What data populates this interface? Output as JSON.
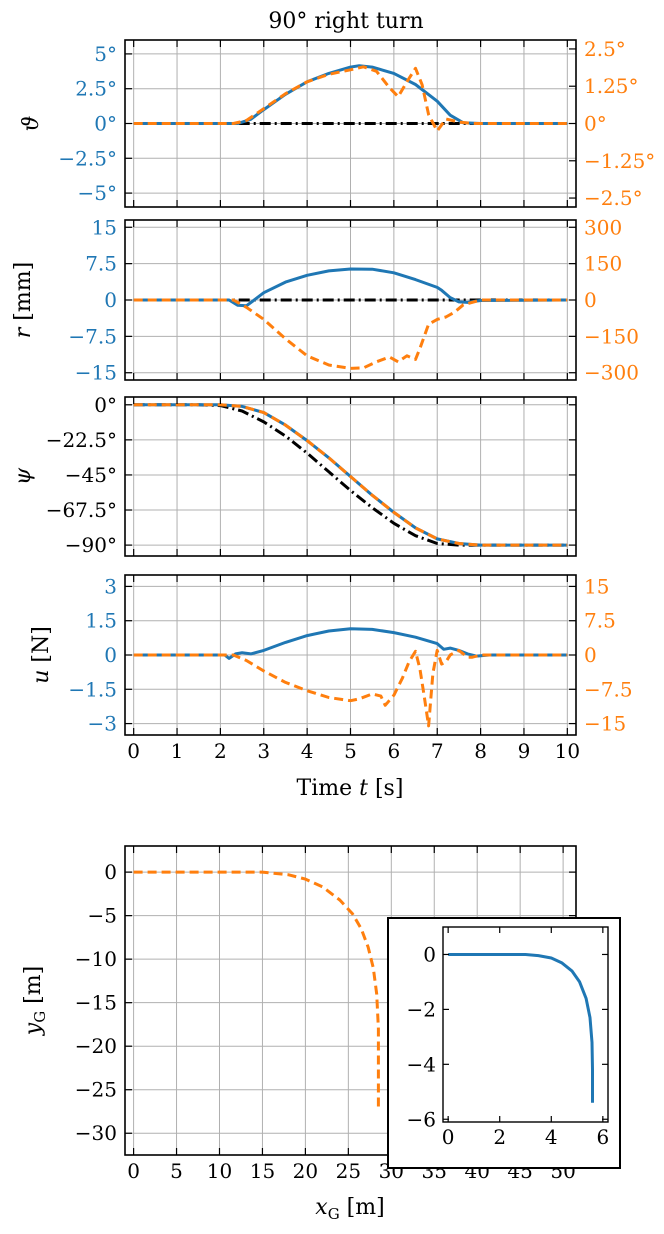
{
  "figure_title": "90° right turn",
  "colors": {
    "blue": "#1f77b4",
    "orange": "#ff7f0e",
    "black": "#000000",
    "grid": "#b0b0b0"
  },
  "chart_data": [
    {
      "type": "line",
      "id": "theta",
      "ylabel": "ϑ",
      "xlim": [
        -0.2,
        10.2
      ],
      "ylim": [
        -6,
        6
      ],
      "y2lim": [
        -2.8,
        2.8
      ],
      "xticks": [
        0,
        1,
        2,
        3,
        4,
        5,
        6,
        7,
        8,
        9,
        10
      ],
      "yticks": [
        {
          "v": 5,
          "label": "5°"
        },
        {
          "v": 2.5,
          "label": "2.5°"
        },
        {
          "v": 0,
          "label": "0°"
        },
        {
          "v": -2.5,
          "label": "−2.5°"
        },
        {
          "v": -5,
          "label": "−5°"
        }
      ],
      "y2ticks": [
        {
          "v": 2.5,
          "label": "2.5°"
        },
        {
          "v": 1.25,
          "label": "1.25°"
        },
        {
          "v": 0,
          "label": "0°"
        },
        {
          "v": -1.25,
          "label": "−1.25°"
        },
        {
          "v": -2.5,
          "label": "−2.5°"
        }
      ],
      "series": [
        {
          "axis": "left",
          "color": "black",
          "style": "dashdot",
          "x": [
            0,
            10
          ],
          "y": [
            0,
            0
          ]
        },
        {
          "axis": "left",
          "color": "blue",
          "style": "solid",
          "x": [
            0,
            2.4,
            2.7,
            3,
            3.5,
            4,
            4.5,
            5,
            5.2,
            5.5,
            6,
            6.5,
            7,
            7.3,
            7.6,
            8,
            10
          ],
          "y": [
            0,
            0,
            0.3,
            1.0,
            2.1,
            3.0,
            3.6,
            4.05,
            4.15,
            4.05,
            3.6,
            2.8,
            1.6,
            0.6,
            0.05,
            0,
            0
          ]
        },
        {
          "axis": "right",
          "color": "orange",
          "style": "dashed",
          "x": [
            0,
            2.3,
            2.6,
            3,
            3.5,
            4,
            4.5,
            5,
            5.3,
            5.6,
            5.9,
            6.1,
            6.3,
            6.5,
            6.65,
            6.8,
            7,
            7.2,
            7.5,
            7.8,
            10
          ],
          "y": [
            0,
            0,
            0.1,
            0.5,
            1.0,
            1.4,
            1.65,
            1.8,
            1.9,
            1.75,
            1.2,
            0.9,
            1.4,
            1.85,
            1.3,
            0.3,
            -0.25,
            0.15,
            0.05,
            0,
            0
          ]
        }
      ]
    },
    {
      "type": "line",
      "id": "r",
      "ylabel": "r [mm]",
      "xlim": [
        -0.2,
        10.2
      ],
      "ylim": [
        -16.5,
        16.5
      ],
      "y2lim": [
        -330,
        330
      ],
      "xticks": [
        0,
        1,
        2,
        3,
        4,
        5,
        6,
        7,
        8,
        9,
        10
      ],
      "yticks": [
        {
          "v": 15,
          "label": "15"
        },
        {
          "v": 7.5,
          "label": "7.5"
        },
        {
          "v": 0,
          "label": "0"
        },
        {
          "v": -7.5,
          "label": "−7.5"
        },
        {
          "v": -15,
          "label": "−15"
        }
      ],
      "y2ticks": [
        {
          "v": 300,
          "label": "300"
        },
        {
          "v": 150,
          "label": "150"
        },
        {
          "v": 0,
          "label": "0"
        },
        {
          "v": -150,
          "label": "−150"
        },
        {
          "v": -300,
          "label": "−300"
        }
      ],
      "series": [
        {
          "axis": "left",
          "color": "black",
          "style": "dashdot",
          "x": [
            0,
            10
          ],
          "y": [
            0,
            0
          ]
        },
        {
          "axis": "left",
          "color": "blue",
          "style": "solid",
          "x": [
            0,
            2.2,
            2.4,
            2.6,
            2.75,
            3,
            3.5,
            4,
            4.5,
            5,
            5.5,
            6,
            6.5,
            7,
            7.1,
            7.3,
            7.5,
            7.7,
            8,
            10
          ],
          "y": [
            0,
            0,
            -1.1,
            -1.2,
            -0.2,
            1.5,
            3.7,
            5.1,
            6.0,
            6.4,
            6.35,
            5.6,
            4.2,
            2.6,
            2.0,
            0.5,
            -0.4,
            -0.5,
            -0.1,
            0
          ]
        },
        {
          "axis": "right",
          "color": "orange",
          "style": "dashed",
          "x": [
            0,
            2.3,
            2.6,
            3,
            3.5,
            4,
            4.5,
            5,
            5.3,
            5.6,
            5.9,
            6.1,
            6.3,
            6.5,
            6.6,
            6.8,
            7,
            7.2,
            7.4,
            7.6,
            8,
            10
          ],
          "y": [
            0,
            0,
            -30,
            -80,
            -160,
            -230,
            -268,
            -282,
            -280,
            -255,
            -235,
            -255,
            -230,
            -245,
            -200,
            -100,
            -80,
            -70,
            -50,
            -20,
            0,
            0
          ]
        }
      ]
    },
    {
      "type": "line",
      "id": "psi",
      "ylabel": "ψ",
      "xlim": [
        -0.2,
        10.2
      ],
      "ylim": [
        -97,
        5
      ],
      "xticks": [
        0,
        1,
        2,
        3,
        4,
        5,
        6,
        7,
        8,
        9,
        10
      ],
      "yticks": [
        {
          "v": 0,
          "label": "0°"
        },
        {
          "v": -22.5,
          "label": "−22.5°"
        },
        {
          "v": -45,
          "label": "−45°"
        },
        {
          "v": -67.5,
          "label": "−67.5°"
        },
        {
          "v": -90,
          "label": "−90°"
        }
      ],
      "series": [
        {
          "axis": "left",
          "color": "black",
          "style": "dashdot",
          "x": [
            0,
            1.5,
            2,
            2.5,
            3,
            3.5,
            4,
            4.5,
            5,
            5.5,
            6,
            6.5,
            7,
            7.5,
            8,
            10
          ],
          "y": [
            0,
            0,
            -0.5,
            -4,
            -11,
            -20,
            -31,
            -43,
            -55,
            -66,
            -76,
            -84,
            -89,
            -90,
            -90,
            -90
          ]
        },
        {
          "axis": "left",
          "color": "blue",
          "style": "solid",
          "x": [
            0,
            2,
            2.5,
            3,
            3.5,
            4,
            4.5,
            5,
            5.5,
            6,
            6.5,
            7,
            7.5,
            8,
            10
          ],
          "y": [
            0,
            0,
            -1,
            -5,
            -13,
            -23,
            -34,
            -46,
            -58,
            -69,
            -79,
            -86,
            -89,
            -90,
            -90
          ]
        },
        {
          "axis": "left",
          "color": "orange",
          "style": "dashed",
          "x": [
            0,
            2,
            2.5,
            3,
            3.5,
            4,
            4.5,
            5,
            5.5,
            6,
            6.5,
            7,
            7.5,
            8,
            10
          ],
          "y": [
            0,
            0,
            -1,
            -5,
            -13,
            -23,
            -34,
            -46,
            -58,
            -69,
            -79,
            -86,
            -89,
            -90,
            -90
          ]
        }
      ]
    },
    {
      "type": "line",
      "id": "u",
      "ylabel": "u [N]",
      "xlabel": "Time t [s]",
      "xlim": [
        -0.2,
        10.2
      ],
      "ylim": [
        -3.5,
        3.5
      ],
      "y2lim": [
        -17.5,
        17.5
      ],
      "xticks": [
        0,
        1,
        2,
        3,
        4,
        5,
        6,
        7,
        8,
        9,
        10
      ],
      "yticks": [
        {
          "v": 3,
          "label": "3"
        },
        {
          "v": 1.5,
          "label": "1.5"
        },
        {
          "v": 0,
          "label": "0"
        },
        {
          "v": -1.5,
          "label": "−1.5"
        },
        {
          "v": -3,
          "label": "−3"
        }
      ],
      "y2ticks": [
        {
          "v": 15,
          "label": "15"
        },
        {
          "v": 7.5,
          "label": "7.5"
        },
        {
          "v": 0,
          "label": "0"
        },
        {
          "v": -7.5,
          "label": "−7.5"
        },
        {
          "v": -15,
          "label": "−15"
        }
      ],
      "series": [
        {
          "axis": "left",
          "color": "blue",
          "style": "solid",
          "x": [
            0,
            2.1,
            2.2,
            2.35,
            2.5,
            2.7,
            3,
            3.5,
            4,
            4.5,
            5,
            5.5,
            6,
            6.5,
            7,
            7.15,
            7.3,
            7.5,
            7.7,
            7.9,
            8.2,
            10
          ],
          "y": [
            0,
            0,
            -0.15,
            0.05,
            0.1,
            0.05,
            0.2,
            0.55,
            0.85,
            1.05,
            1.15,
            1.12,
            0.98,
            0.78,
            0.5,
            0.25,
            0.3,
            0.2,
            0.05,
            -0.05,
            0,
            0
          ]
        },
        {
          "axis": "right",
          "color": "orange",
          "style": "dashed",
          "x": [
            0,
            2.3,
            2.6,
            3,
            3.5,
            4,
            4.5,
            5,
            5.2,
            5.5,
            5.7,
            5.8,
            6,
            6.2,
            6.35,
            6.5,
            6.6,
            6.7,
            6.8,
            6.9,
            7,
            7.1,
            7.2,
            7.3,
            7.5,
            7.7,
            7.8,
            8,
            10
          ],
          "y": [
            0,
            0,
            -1.2,
            -3.5,
            -6,
            -7.8,
            -9.3,
            -10,
            -9.6,
            -8.5,
            -9,
            -11,
            -8.8,
            -5,
            -1.5,
            0.8,
            -3,
            -9,
            -15.5,
            -4,
            1,
            -2,
            -1.5,
            0,
            1,
            -0.5,
            -0.5,
            0,
            0
          ]
        }
      ]
    },
    {
      "type": "line",
      "id": "trajectory",
      "xlabel": "xG [m]",
      "ylabel": "yG [m]",
      "xlim": [
        -1,
        51.5
      ],
      "ylim": [
        -32.5,
        3
      ],
      "xticks": [
        0,
        5,
        10,
        15,
        20,
        25,
        30,
        35,
        40,
        45,
        50
      ],
      "yticks": [
        {
          "v": 0,
          "label": "0"
        },
        {
          "v": -5,
          "label": "−5"
        },
        {
          "v": -10,
          "label": "−10"
        },
        {
          "v": -15,
          "label": "−15"
        },
        {
          "v": -20,
          "label": "−20"
        },
        {
          "v": -25,
          "label": "−25"
        },
        {
          "v": -30,
          "label": "−30"
        }
      ],
      "series": [
        {
          "color": "orange",
          "style": "dashed",
          "x": [
            0,
            15,
            18,
            20,
            22,
            24,
            25.5,
            26.5,
            27.3,
            27.9,
            28.3,
            28.5,
            28.5
          ],
          "y": [
            0,
            0,
            -0.3,
            -0.8,
            -1.7,
            -3.2,
            -4.8,
            -6.5,
            -8.6,
            -11,
            -14,
            -18,
            -27
          ]
        }
      ],
      "inset": {
        "xlim": [
          -0.2,
          6.2
        ],
        "ylim": [
          -6.1,
          1
        ],
        "xticks": [
          0,
          2,
          4,
          6
        ],
        "yticks": [
          {
            "v": 0,
            "label": "0"
          },
          {
            "v": -2,
            "label": "−2"
          },
          {
            "v": -4,
            "label": "−4"
          },
          {
            "v": -6,
            "label": "−6"
          }
        ],
        "series": [
          {
            "color": "blue",
            "style": "solid",
            "x": [
              0,
              3,
              3.5,
              4,
              4.4,
              4.8,
              5.1,
              5.35,
              5.5,
              5.58,
              5.6,
              5.6
            ],
            "y": [
              0,
              0,
              -0.04,
              -0.13,
              -0.3,
              -0.6,
              -1.0,
              -1.6,
              -2.3,
              -3.2,
              -4.2,
              -5.4
            ]
          }
        ]
      }
    }
  ]
}
